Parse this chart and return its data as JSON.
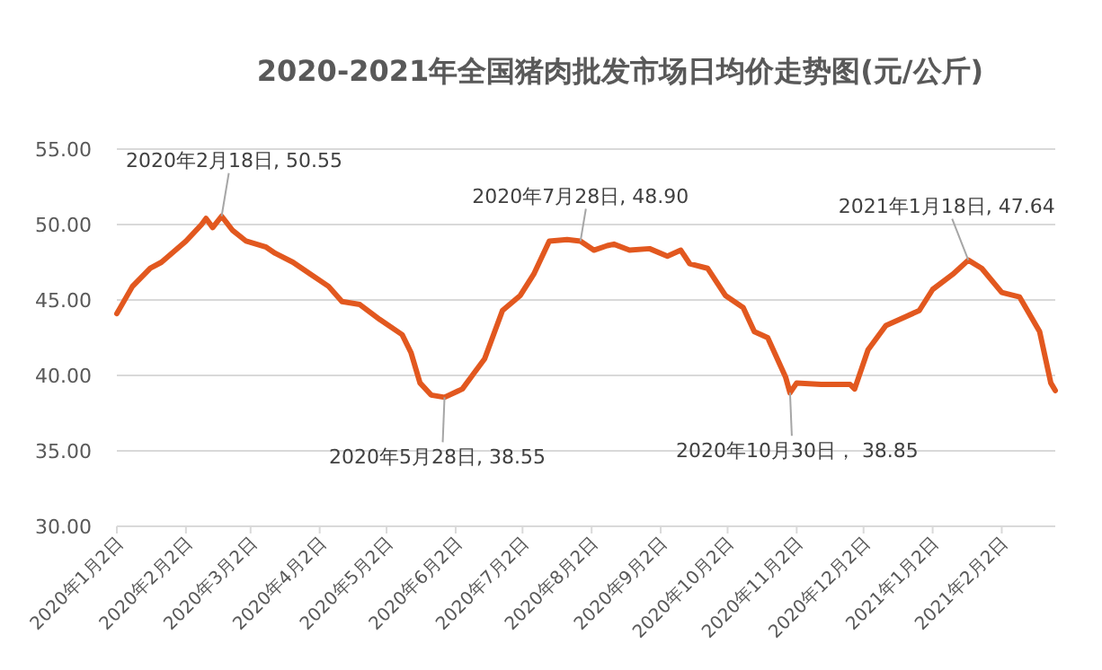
{
  "chart_data": {
    "type": "line",
    "title": "2020-2021年全国猪肉批发市场日均价走势图(元/公斤)",
    "x": [
      "2020-01-02",
      "2020-01-09",
      "2020-01-17",
      "2020-01-22",
      "2020-02-02",
      "2020-02-09",
      "2020-02-11",
      "2020-02-14",
      "2020-02-18",
      "2020-02-23",
      "2020-02-29",
      "2020-03-09",
      "2020-03-13",
      "2020-03-21",
      "2020-03-29",
      "2020-04-06",
      "2020-04-12",
      "2020-04-20",
      "2020-04-29",
      "2020-05-09",
      "2020-05-13",
      "2020-05-17",
      "2020-05-22",
      "2020-05-28",
      "2020-06-05",
      "2020-06-10",
      "2020-06-15",
      "2020-06-23",
      "2020-07-01",
      "2020-07-07",
      "2020-07-14",
      "2020-07-22",
      "2020-07-28",
      "2020-08-03",
      "2020-08-09",
      "2020-08-12",
      "2020-08-19",
      "2020-08-28",
      "2020-09-05",
      "2020-09-11",
      "2020-09-15",
      "2020-09-23",
      "2020-10-01",
      "2020-10-09",
      "2020-10-14",
      "2020-10-20",
      "2020-10-28",
      "2020-10-30",
      "2020-11-02",
      "2020-11-13",
      "2020-11-26",
      "2020-11-28",
      "2020-12-04",
      "2020-12-12",
      "2020-12-21",
      "2020-12-27",
      "2021-01-02",
      "2021-01-11",
      "2021-01-18",
      "2021-01-24",
      "2021-02-02",
      "2021-02-10",
      "2021-02-19",
      "2021-02-24",
      "2021-02-26"
    ],
    "series": [
      {
        "color": "#e2581f",
        "values": [
          44.1,
          45.9,
          47.1,
          47.5,
          48.9,
          50.0,
          50.4,
          49.8,
          50.55,
          49.6,
          48.9,
          48.5,
          48.1,
          47.5,
          46.7,
          45.9,
          44.9,
          44.7,
          43.7,
          42.7,
          41.5,
          39.5,
          38.7,
          38.55,
          39.1,
          40.1,
          41.1,
          44.3,
          45.3,
          46.7,
          48.9,
          49.0,
          48.9,
          48.3,
          48.6,
          48.7,
          48.3,
          48.4,
          47.9,
          48.3,
          47.4,
          47.1,
          45.3,
          44.5,
          42.9,
          42.5,
          39.9,
          38.85,
          39.5,
          39.4,
          39.4,
          39.1,
          41.7,
          43.3,
          43.9,
          44.3,
          45.7,
          46.7,
          47.64,
          47.1,
          45.5,
          45.2,
          42.9,
          39.5,
          39.0
        ]
      }
    ],
    "xlim": [
      "2020-01-02",
      "2021-02-26"
    ],
    "xticks": [
      {
        "value": "2020-01-02",
        "label": "2020年1月2日"
      },
      {
        "value": "2020-02-02",
        "label": "2020年2月2日"
      },
      {
        "value": "2020-03-02",
        "label": "2020年3月2日"
      },
      {
        "value": "2020-04-02",
        "label": "2020年4月2日"
      },
      {
        "value": "2020-05-02",
        "label": "2020年5月2日"
      },
      {
        "value": "2020-06-02",
        "label": "2020年6月2日"
      },
      {
        "value": "2020-07-02",
        "label": "2020年7月2日"
      },
      {
        "value": "2020-08-02",
        "label": "2020年8月2日"
      },
      {
        "value": "2020-09-02",
        "label": "2020年9月2日"
      },
      {
        "value": "2020-10-02",
        "label": "2020年10月2日"
      },
      {
        "value": "2020-11-02",
        "label": "2020年11月2日"
      },
      {
        "value": "2020-12-02",
        "label": "2020年12月2日"
      },
      {
        "value": "2021-01-02",
        "label": "2021年1月2日"
      },
      {
        "value": "2021-02-02",
        "label": "2021年2月2日"
      }
    ],
    "ylim": [
      30,
      55
    ],
    "yticks": [
      {
        "value": 30,
        "label": "30.00"
      },
      {
        "value": 35,
        "label": "35.00"
      },
      {
        "value": 40,
        "label": "40.00"
      },
      {
        "value": 45,
        "label": "45.00"
      },
      {
        "value": 50,
        "label": "50.00"
      },
      {
        "value": 55,
        "label": "55.00"
      }
    ],
    "grid": "y",
    "marker": "none",
    "line_style": "solid",
    "annotations": [
      {
        "text": "2020年2月18日, 50.55",
        "x": "2020-02-18",
        "y": 50.55
      },
      {
        "text": "2020年5月28日, 38.55",
        "x": "2020-05-28",
        "y": 38.55
      },
      {
        "text": "2020年7月28日, 48.90",
        "x": "2020-07-28",
        "y": 48.9
      },
      {
        "text": "2020年10月30日， 38.85",
        "x": "2020-10-30",
        "y": 38.85
      },
      {
        "text": "2021年1月18日, 47.64",
        "x": "2021-01-18",
        "y": 47.64
      }
    ]
  }
}
